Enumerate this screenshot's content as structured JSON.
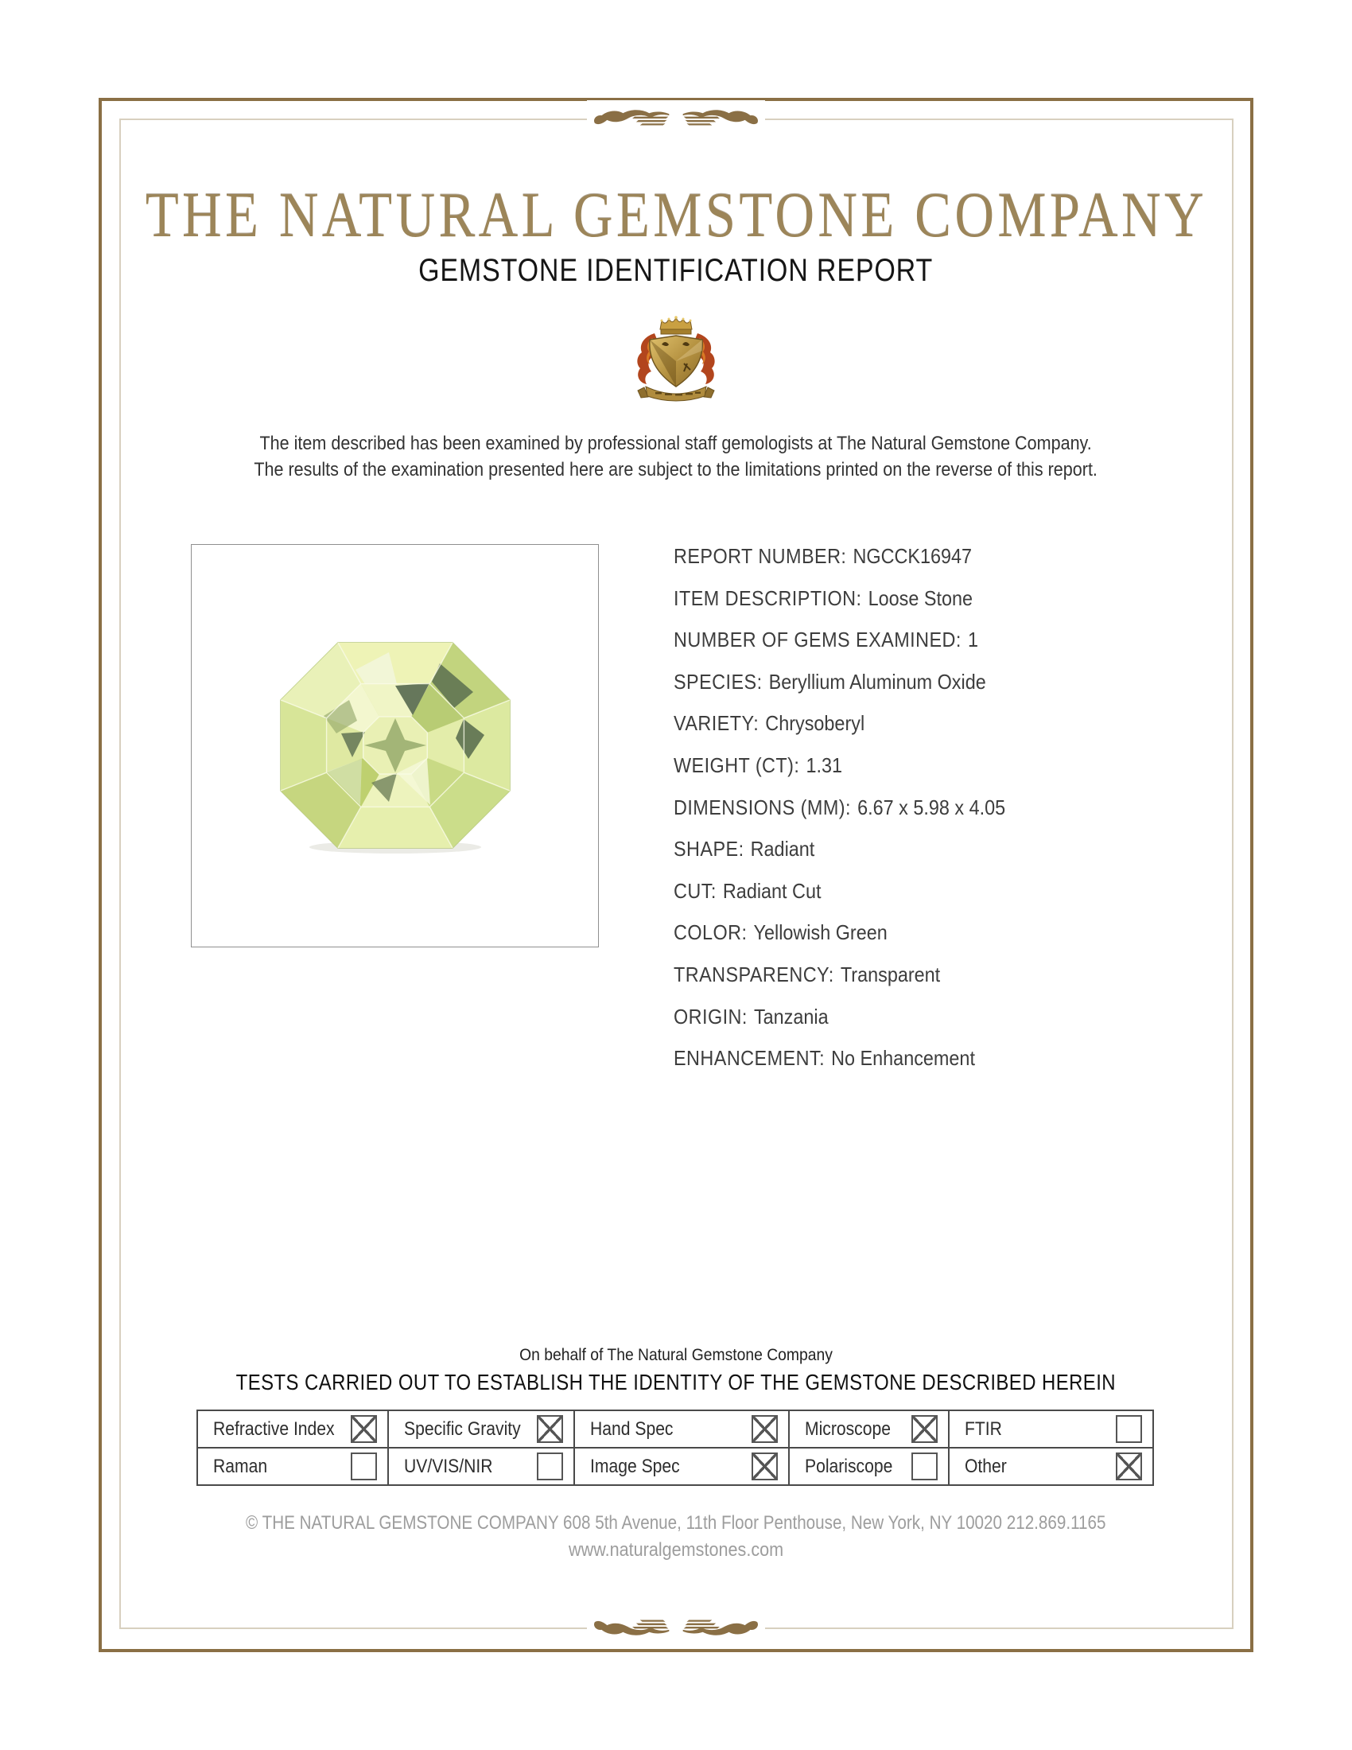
{
  "brand": {
    "title": "THE NATURAL GEMSTONE COMPANY",
    "subtitle": "GEMSTONE IDENTIFICATION REPORT",
    "accent_color": "#8a6f45",
    "title_color": "#9c8559",
    "crest_icon": "heraldic-crest-icon",
    "ornament_icon": "flourish-divider-icon"
  },
  "intro": {
    "line1": "The item described has been examined by professional staff gemologists at The Natural Gemstone Company.",
    "line2": "The results of the examination presented here are subject to the limitations printed on the reverse of this report."
  },
  "photo": {
    "description": "yellowish-green radiant cut gemstone on white background",
    "gem_colors": [
      "#eef3b6",
      "#d9e592",
      "#b8cc74",
      "#57694f",
      "#f2f6da"
    ]
  },
  "details": [
    {
      "label": "REPORT NUMBER:",
      "value": "NGCCK16947"
    },
    {
      "label": "ITEM DESCRIPTION:",
      "value": "Loose Stone"
    },
    {
      "label": "NUMBER OF GEMS EXAMINED:",
      "value": "1"
    },
    {
      "label": "SPECIES:",
      "value": "Beryllium Aluminum Oxide"
    },
    {
      "label": "VARIETY:",
      "value": "Chrysoberyl"
    },
    {
      "label": "WEIGHT (CT):",
      "value": "1.31"
    },
    {
      "label": "DIMENSIONS (MM):",
      "value": "6.67 x 5.98 x 4.05"
    },
    {
      "label": "SHAPE:",
      "value": "Radiant"
    },
    {
      "label": "CUT:",
      "value": "Radiant Cut"
    },
    {
      "label": "COLOR:",
      "value": "Yellowish Green"
    },
    {
      "label": "TRANSPARENCY:",
      "value": "Transparent"
    },
    {
      "label": "ORIGIN:",
      "value": "Tanzania"
    },
    {
      "label": "ENHANCEMENT:",
      "value": "No Enhancement"
    }
  ],
  "attestation": {
    "on_behalf": "On behalf of The Natural Gemstone Company",
    "tests_heading": "TESTS CARRIED OUT TO ESTABLISH THE IDENTITY OF THE GEMSTONE DESCRIBED HEREIN"
  },
  "tests": {
    "rows": [
      [
        {
          "label": "Refractive Index",
          "checked": true
        },
        {
          "label": "Specific Gravity",
          "checked": true
        },
        {
          "label": "Hand Spec",
          "checked": true
        },
        {
          "label": "Microscope",
          "checked": true
        },
        {
          "label": "FTIR",
          "checked": false
        }
      ],
      [
        {
          "label": "Raman",
          "checked": false
        },
        {
          "label": "UV/VIS/NIR",
          "checked": false
        },
        {
          "label": "Image Spec",
          "checked": true
        },
        {
          "label": "Polariscope",
          "checked": false
        },
        {
          "label": "Other",
          "checked": true
        }
      ]
    ]
  },
  "footer": {
    "line1": "© THE NATURAL GEMSTONE COMPANY  608 5th Avenue, 11th Floor Penthouse, New York, NY  10020   212.869.1165",
    "line2": "www.naturalgemstones.com"
  }
}
